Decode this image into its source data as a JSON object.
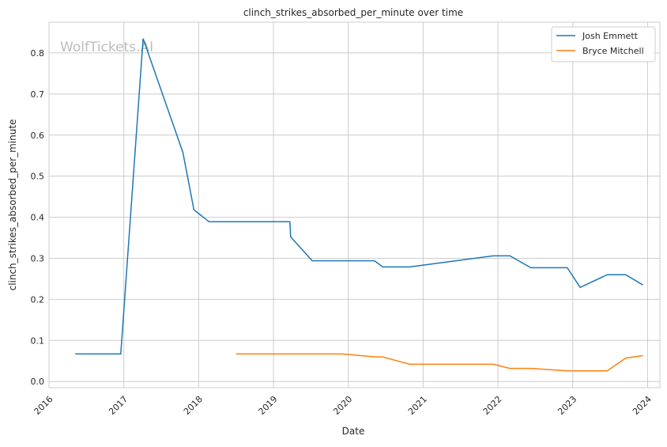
{
  "chart_data": {
    "type": "line",
    "title": "clinch_strikes_absorbed_per_minute over time",
    "xlabel": "Date",
    "ylabel": "clinch_strikes_absorbed_per_minute",
    "watermark": "WolfTickets.AI",
    "xlim": [
      "2016-01-01",
      "2024-03-01"
    ],
    "ylim": [
      -0.015,
      0.875
    ],
    "x_ticks": [
      "2016",
      "2017",
      "2018",
      "2019",
      "2020",
      "2021",
      "2022",
      "2023",
      "2024"
    ],
    "y_ticks": [
      "0.0",
      "0.1",
      "0.2",
      "0.3",
      "0.4",
      "0.5",
      "0.6",
      "0.7",
      "0.8"
    ],
    "grid": true,
    "legend_position": "top-right",
    "series": [
      {
        "name": "Josh Emmett",
        "color": "#1f77b4",
        "points": [
          [
            "2016-05-08",
            0.067
          ],
          [
            "2016-12-17",
            0.067
          ],
          [
            "2017-04-05",
            0.835
          ],
          [
            "2017-10-16",
            0.558
          ],
          [
            "2017-12-09",
            0.418
          ],
          [
            "2018-02-21",
            0.389
          ],
          [
            "2019-03-22",
            0.389
          ],
          [
            "2019-03-26",
            0.352
          ],
          [
            "2019-07-09",
            0.294
          ],
          [
            "2020-05-08",
            0.294
          ],
          [
            "2020-06-17",
            0.279
          ],
          [
            "2020-10-27",
            0.279
          ],
          [
            "2021-12-09",
            0.306
          ],
          [
            "2022-02-28",
            0.306
          ],
          [
            "2022-06-10",
            0.277
          ],
          [
            "2022-12-05",
            0.277
          ],
          [
            "2023-02-06",
            0.229
          ],
          [
            "2023-06-18",
            0.26
          ],
          [
            "2023-09-16",
            0.26
          ],
          [
            "2023-12-09",
            0.235
          ]
        ]
      },
      {
        "name": "Bryce Mitchell",
        "color": "#ff7f0e",
        "points": [
          [
            "2018-07-02",
            0.067
          ],
          [
            "2019-12-05",
            0.067
          ],
          [
            "2020-05-08",
            0.06
          ],
          [
            "2020-06-17",
            0.06
          ],
          [
            "2020-10-27",
            0.042
          ],
          [
            "2021-12-09",
            0.042
          ],
          [
            "2022-02-28",
            0.032
          ],
          [
            "2022-06-10",
            0.032
          ],
          [
            "2022-12-05",
            0.026
          ],
          [
            "2023-06-18",
            0.026
          ],
          [
            "2023-09-16",
            0.057
          ],
          [
            "2023-12-09",
            0.063
          ]
        ]
      }
    ]
  }
}
